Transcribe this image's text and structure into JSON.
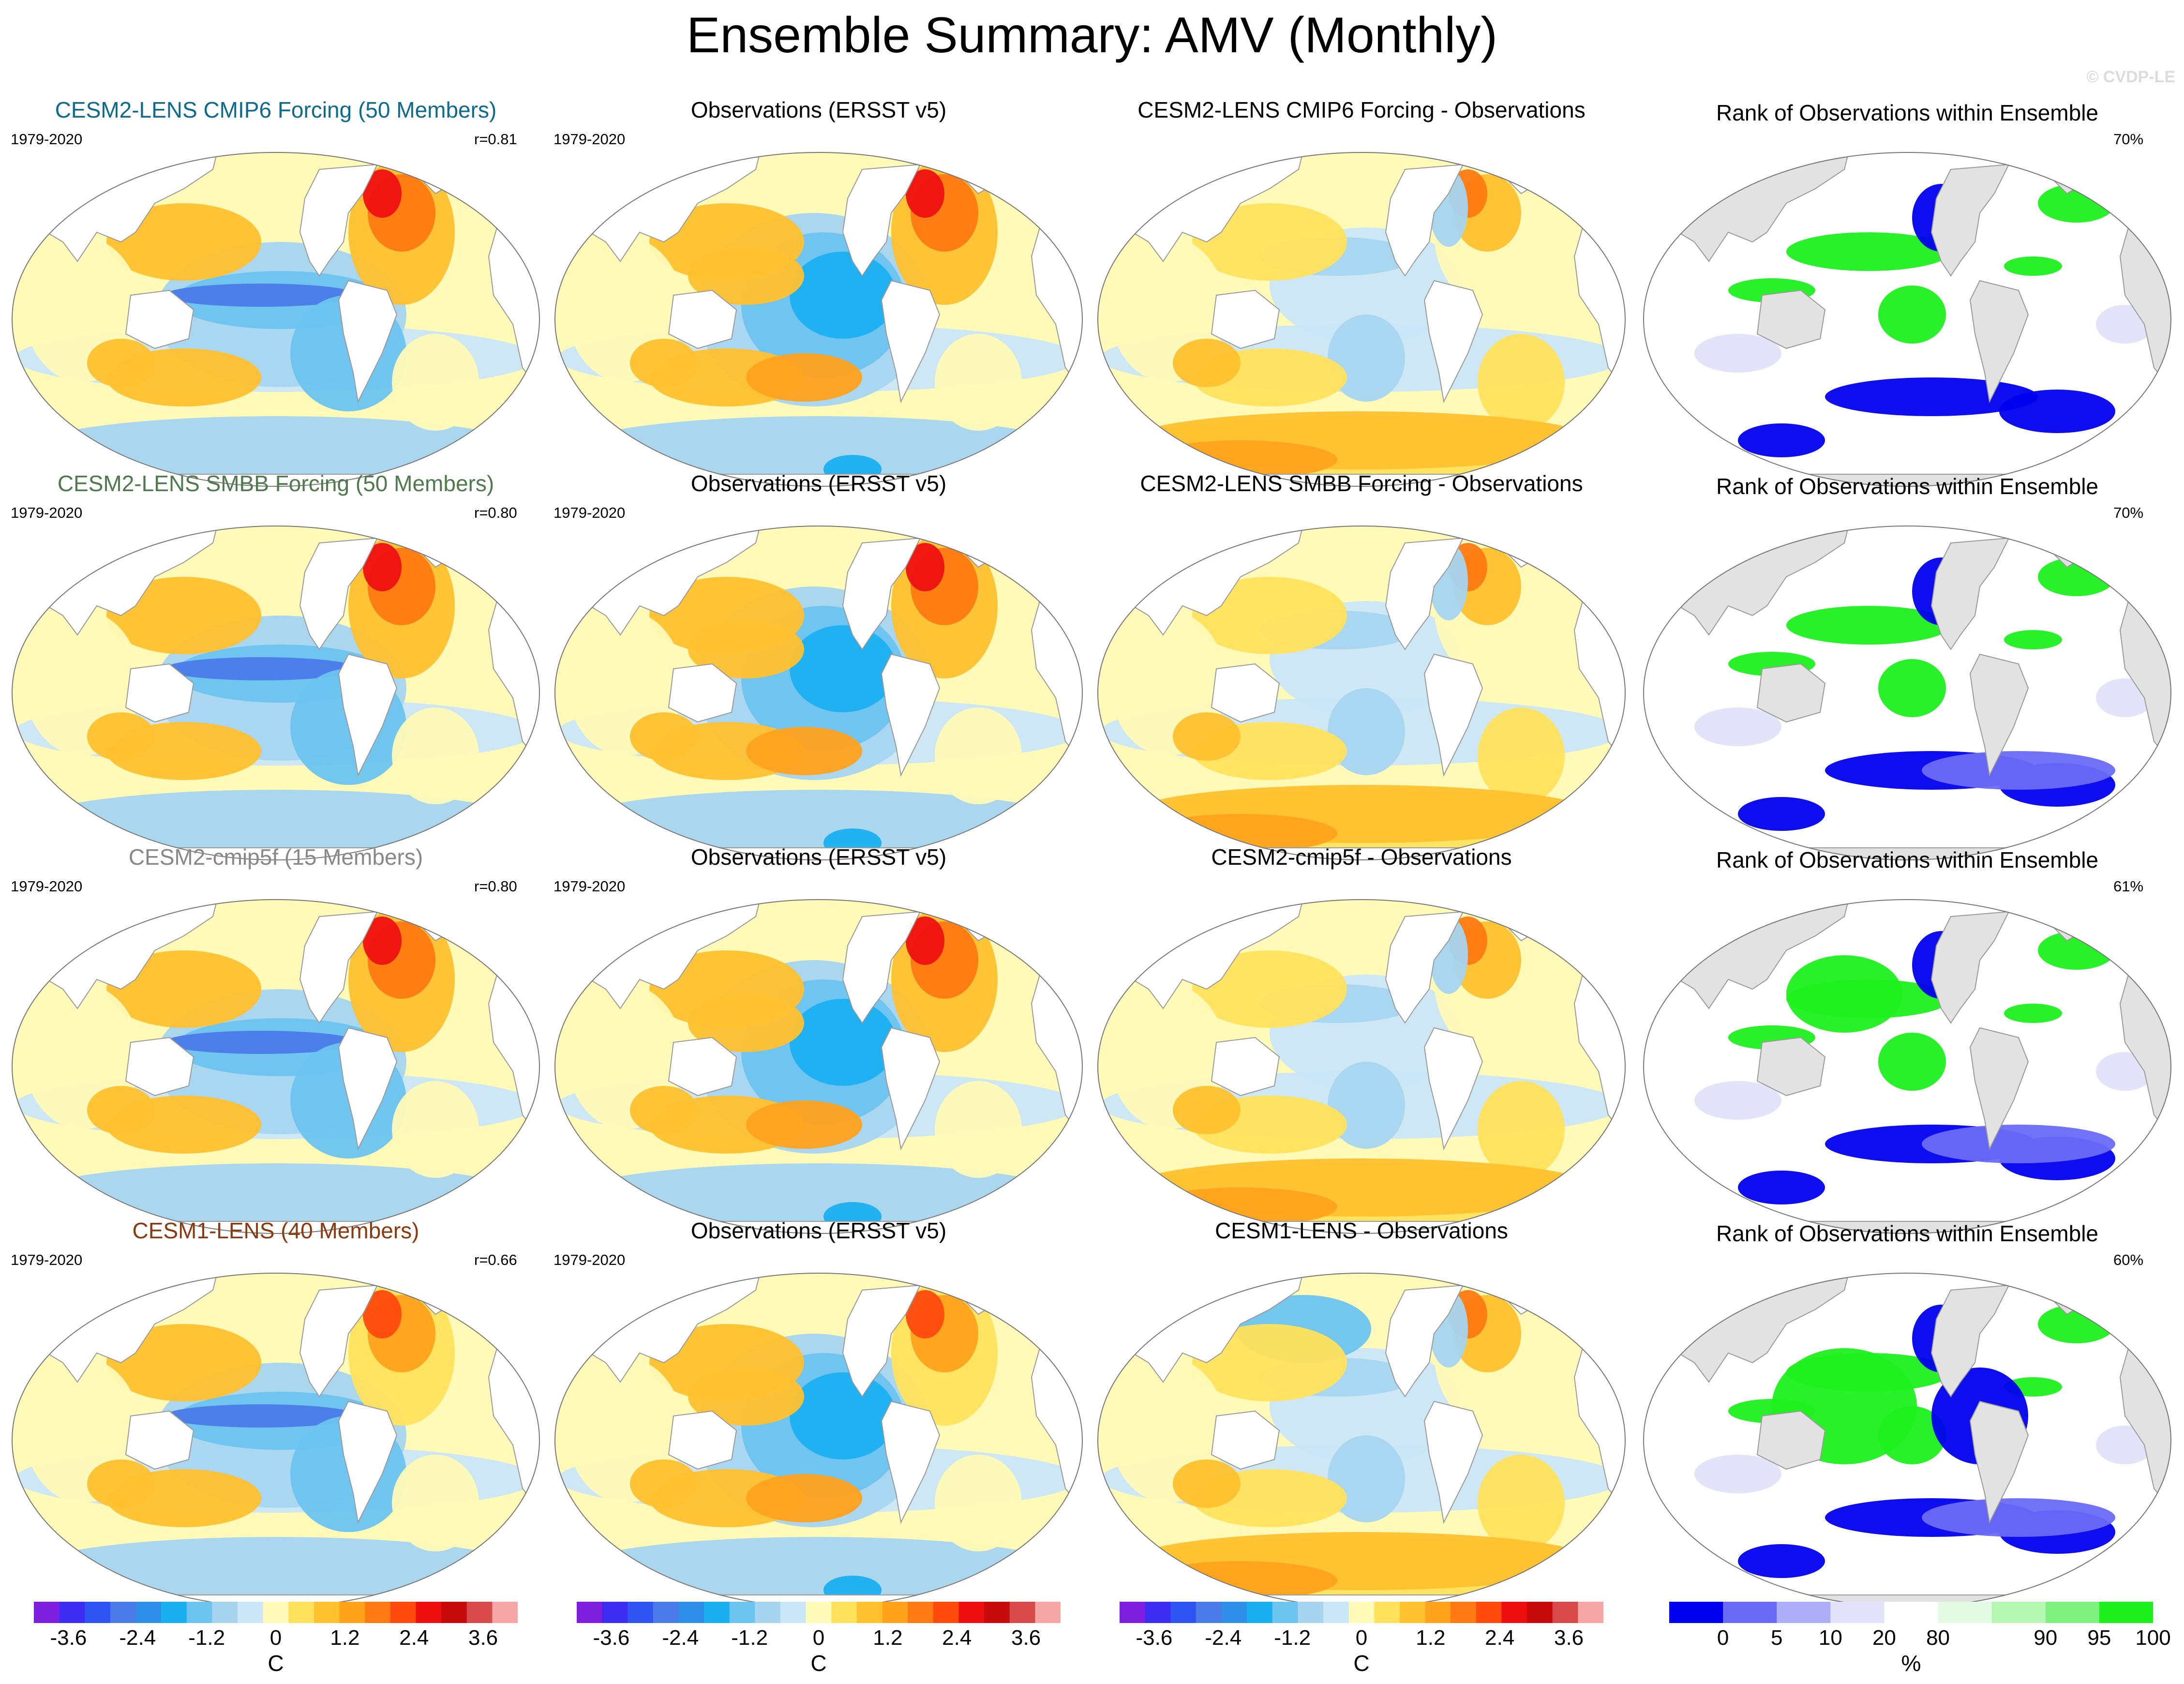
{
  "title": "Ensemble Summary: AMV (Monthly)",
  "credit": "© CVDP-LE",
  "period": "1979-2020",
  "colors": {
    "model_text": [
      "#0e6a8f",
      "#4e7a4e",
      "#888888",
      "#8b3a0f"
    ],
    "diverging": [
      "#7e1fe0",
      "#3c2bf0",
      "#2e55f2",
      "#4a7be8",
      "#2f8fe8",
      "#1ab0f0",
      "#6cc4ef",
      "#a7d5f0",
      "#cae6f7",
      "#fffab7",
      "#ffe15c",
      "#ffc12e",
      "#ffa21c",
      "#ff7a12",
      "#ff4a0e",
      "#ee1010",
      "#c70a0a",
      "#d84a4a",
      "#f7a6a6"
    ],
    "rank": [
      "#0000ee",
      "#6a6af5",
      "#aeaef8",
      "#e2e2fa",
      "#ffffff",
      "#e2fbe2",
      "#b4f8b4",
      "#7ef07e",
      "#1ef01e"
    ],
    "land_rank": "#e2e2e2",
    "land": "#ffffff"
  },
  "rows": [
    {
      "model_title": "CESM2-LENS CMIP6 Forcing (50 Members)",
      "r_value": "r=0.81",
      "obs_title": "Observations (ERSST v5)",
      "diff_title": "CESM2-LENS CMIP6 Forcing - Observations",
      "rank_title": "Rank of Observations within Ensemble",
      "rank_pct": "70%"
    },
    {
      "model_title": "CESM2-LENS SMBB Forcing (50 Members)",
      "r_value": "r=0.80",
      "obs_title": "Observations (ERSST v5)",
      "diff_title": "CESM2-LENS SMBB Forcing - Observations",
      "rank_title": "Rank of Observations within Ensemble",
      "rank_pct": "70%"
    },
    {
      "model_title": "CESM2-cmip5f (15 Members)",
      "r_value": "r=0.80",
      "obs_title": "Observations (ERSST v5)",
      "diff_title": "CESM2-cmip5f - Observations",
      "rank_title": "Rank of Observations within Ensemble",
      "rank_pct": "61%"
    },
    {
      "model_title": "CESM1-LENS (40 Members)",
      "r_value": "r=0.66",
      "obs_title": "Observations (ERSST v5)",
      "diff_title": "CESM1-LENS - Observations",
      "rank_title": "Rank of Observations within Ensemble",
      "rank_pct": "60%"
    }
  ],
  "colorbars": {
    "temp_ticks": [
      "-3.6",
      "-2.4",
      "-1.2",
      "0",
      "1.2",
      "2.4",
      "3.6"
    ],
    "temp_tick_values": [
      -3.6,
      -2.4,
      -1.2,
      0,
      1.2,
      2.4,
      3.6
    ],
    "temp_range": [
      -4.2,
      4.2
    ],
    "temp_unit": "C",
    "rank_ticks": [
      "0",
      "5",
      "10",
      "20",
      "80",
      "90",
      "95",
      "100"
    ],
    "rank_tick_index": [
      1,
      2,
      3,
      4,
      5,
      7,
      8,
      9
    ],
    "rank_unit": "%"
  },
  "chart_data": {
    "type": "heatmap",
    "title": "Ensemble Summary: AMV (Monthly)",
    "layout": "4 rows x 4 columns of global Robinson-projection maps",
    "columns": [
      "Model ensemble mean pattern",
      "Observations (ERSST v5)",
      "Model - Observations",
      "Rank of Observations within Ensemble"
    ],
    "colorbar_temperature": {
      "unit": "C",
      "range": [
        -4.2,
        4.2
      ],
      "interval": 0.4,
      "ticks": [
        -3.6,
        -2.4,
        -1.2,
        0,
        1.2,
        2.4,
        3.6
      ]
    },
    "colorbar_rank": {
      "unit": "%",
      "boundaries": [
        0,
        5,
        10,
        20,
        80,
        90,
        95,
        100
      ]
    },
    "pattern_correlations": [
      0.81,
      0.8,
      0.8,
      0.66
    ],
    "rank_percent_within_range": [
      70,
      70,
      61,
      60
    ],
    "period": "1979-2020"
  }
}
